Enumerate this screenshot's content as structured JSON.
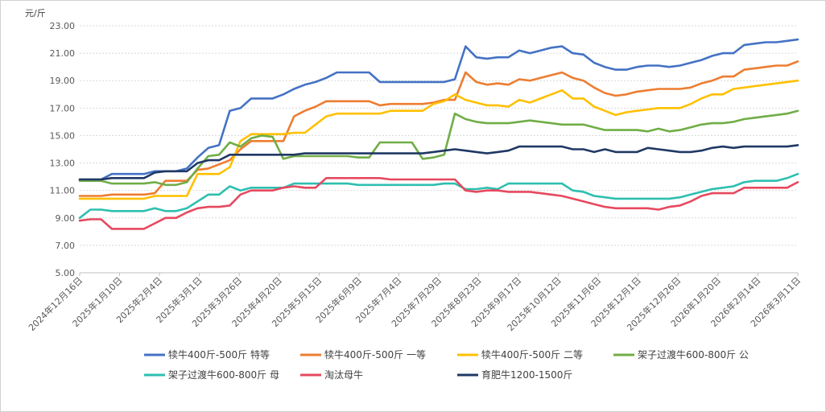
{
  "chart_data": {
    "type": "line",
    "ylabel": "元/斤",
    "ylim": [
      5,
      23
    ],
    "yticks": [
      "5.00",
      "7.00",
      "9.00",
      "11.00",
      "13.00",
      "15.00",
      "17.00",
      "19.00",
      "21.00",
      "23.00"
    ],
    "xticks": [
      "2024年12月16日",
      "2025年1月10日",
      "2025年2月4日",
      "2025年3月1日",
      "2025年3月26日",
      "2025年4月20日",
      "2025年5月15日",
      "2025年6月9日",
      "2025年7月4日",
      "2025年7月29日",
      "2025年8月23日",
      "2025年9月17日",
      "2025年10月12日",
      "2025年11月6日",
      "2025年12月1日",
      "2025年12月26日",
      "2026年1月20日",
      "2026年2月14日",
      "2026年3月11日"
    ],
    "grid": true,
    "legend_position": "bottom",
    "series": [
      {
        "name": "犊牛400斤-500斤 特等",
        "color": "#4472c4",
        "values": [
          11.8,
          11.8,
          11.8,
          12.2,
          12.2,
          12.2,
          12.2,
          12.4,
          12.4,
          12.4,
          12.6,
          13.4,
          14.1,
          14.3,
          16.8,
          17.0,
          17.7,
          17.7,
          17.7,
          18.0,
          18.4,
          18.7,
          18.9,
          19.2,
          19.6,
          19.6,
          19.6,
          19.6,
          18.9,
          18.9,
          18.9,
          18.9,
          18.9,
          18.9,
          18.9,
          19.1,
          21.5,
          20.7,
          20.6,
          20.7,
          20.7,
          21.2,
          21.0,
          21.2,
          21.4,
          21.5,
          21.0,
          20.9,
          20.3,
          20.0,
          19.8,
          19.8,
          20.0,
          20.1,
          20.1,
          20.0,
          20.1,
          20.3,
          20.5,
          20.8,
          21.0,
          21.0,
          21.6,
          21.7,
          21.8,
          21.8,
          21.9,
          22.0
        ]
      },
      {
        "name": "犊牛400斤-500斤 一等",
        "color": "#ed7d31",
        "values": [
          10.6,
          10.6,
          10.6,
          10.7,
          10.7,
          10.7,
          10.7,
          10.8,
          11.7,
          11.7,
          11.7,
          12.5,
          12.6,
          12.9,
          13.2,
          14.0,
          14.6,
          14.6,
          14.6,
          14.6,
          16.4,
          16.8,
          17.1,
          17.5,
          17.5,
          17.5,
          17.5,
          17.5,
          17.2,
          17.3,
          17.3,
          17.3,
          17.3,
          17.4,
          17.6,
          17.6,
          19.6,
          18.9,
          18.7,
          18.8,
          18.7,
          19.1,
          19.0,
          19.2,
          19.4,
          19.6,
          19.2,
          19.0,
          18.5,
          18.1,
          17.9,
          18.0,
          18.2,
          18.3,
          18.4,
          18.4,
          18.4,
          18.5,
          18.8,
          19.0,
          19.3,
          19.3,
          19.8,
          19.9,
          20.0,
          20.1,
          20.1,
          20.4
        ]
      },
      {
        "name": "犊牛400斤-500斤 二等",
        "color": "#ffc000",
        "values": [
          10.4,
          10.4,
          10.4,
          10.4,
          10.4,
          10.4,
          10.4,
          10.6,
          10.6,
          10.6,
          10.6,
          12.2,
          12.2,
          12.2,
          12.7,
          14.6,
          15.1,
          15.1,
          15.1,
          15.1,
          15.2,
          15.2,
          15.8,
          16.4,
          16.6,
          16.6,
          16.6,
          16.6,
          16.6,
          16.8,
          16.8,
          16.8,
          16.8,
          17.3,
          17.5,
          18.0,
          17.6,
          17.4,
          17.2,
          17.2,
          17.1,
          17.6,
          17.4,
          17.7,
          18.0,
          18.3,
          17.7,
          17.7,
          17.1,
          16.8,
          16.5,
          16.7,
          16.8,
          16.9,
          17.0,
          17.0,
          17.0,
          17.3,
          17.7,
          18.0,
          18.0,
          18.4,
          18.5,
          18.6,
          18.7,
          18.8,
          18.9,
          19.0
        ]
      },
      {
        "name": "架子过渡牛600-800斤 公",
        "color": "#70ad47",
        "values": [
          11.7,
          11.7,
          11.7,
          11.5,
          11.5,
          11.5,
          11.5,
          11.6,
          11.4,
          11.4,
          11.6,
          12.6,
          13.5,
          13.6,
          14.5,
          14.2,
          14.8,
          15.0,
          14.9,
          13.3,
          13.5,
          13.5,
          13.5,
          13.5,
          13.5,
          13.5,
          13.4,
          13.4,
          14.5,
          14.5,
          14.5,
          14.5,
          13.3,
          13.4,
          13.6,
          16.6,
          16.2,
          16.0,
          15.9,
          15.9,
          15.9,
          16.0,
          16.1,
          16.0,
          15.9,
          15.8,
          15.8,
          15.8,
          15.6,
          15.4,
          15.4,
          15.4,
          15.4,
          15.3,
          15.5,
          15.3,
          15.4,
          15.6,
          15.8,
          15.9,
          15.9,
          16.0,
          16.2,
          16.3,
          16.4,
          16.5,
          16.6,
          16.8
        ]
      },
      {
        "name": "架子过渡牛600-800斤 母",
        "color": "#2ebfb0",
        "values": [
          9.0,
          9.6,
          9.6,
          9.5,
          9.5,
          9.5,
          9.5,
          9.7,
          9.5,
          9.5,
          9.7,
          10.2,
          10.7,
          10.7,
          11.3,
          11.0,
          11.2,
          11.2,
          11.2,
          11.2,
          11.5,
          11.5,
          11.5,
          11.5,
          11.5,
          11.5,
          11.4,
          11.4,
          11.4,
          11.4,
          11.4,
          11.4,
          11.4,
          11.4,
          11.5,
          11.5,
          11.1,
          11.1,
          11.2,
          11.1,
          11.5,
          11.5,
          11.5,
          11.5,
          11.5,
          11.5,
          11.0,
          10.9,
          10.6,
          10.5,
          10.4,
          10.4,
          10.4,
          10.4,
          10.4,
          10.4,
          10.5,
          10.7,
          10.9,
          11.1,
          11.2,
          11.3,
          11.6,
          11.7,
          11.7,
          11.7,
          11.9,
          12.2
        ]
      },
      {
        "name": "淘汰母牛",
        "color": "#e6495f",
        "values": [
          8.8,
          8.9,
          8.9,
          8.2,
          8.2,
          8.2,
          8.2,
          8.6,
          9.0,
          9.0,
          9.4,
          9.7,
          9.8,
          9.8,
          9.9,
          10.7,
          11.0,
          11.0,
          11.0,
          11.2,
          11.3,
          11.2,
          11.2,
          11.9,
          11.9,
          11.9,
          11.9,
          11.9,
          11.9,
          11.8,
          11.8,
          11.8,
          11.8,
          11.8,
          11.8,
          11.8,
          11.0,
          10.9,
          11.0,
          11.0,
          10.9,
          10.9,
          10.9,
          10.8,
          10.7,
          10.6,
          10.4,
          10.2,
          10.0,
          9.8,
          9.7,
          9.7,
          9.7,
          9.7,
          9.6,
          9.8,
          9.9,
          10.2,
          10.6,
          10.8,
          10.8,
          10.8,
          11.2,
          11.2,
          11.2,
          11.2,
          11.2,
          11.6
        ]
      },
      {
        "name": "育肥牛1200-1500斤",
        "color": "#203864",
        "values": [
          11.8,
          11.8,
          11.8,
          11.9,
          11.9,
          11.9,
          11.9,
          12.3,
          12.4,
          12.4,
          12.4,
          13.0,
          13.2,
          13.2,
          13.6,
          13.6,
          13.6,
          13.6,
          13.6,
          13.6,
          13.6,
          13.7,
          13.7,
          13.7,
          13.7,
          13.7,
          13.7,
          13.7,
          13.7,
          13.7,
          13.7,
          13.7,
          13.7,
          13.8,
          13.9,
          14.0,
          13.9,
          13.8,
          13.7,
          13.8,
          13.9,
          14.2,
          14.2,
          14.2,
          14.2,
          14.2,
          14.0,
          14.0,
          13.8,
          14.0,
          13.8,
          13.8,
          13.8,
          14.1,
          14.0,
          13.9,
          13.8,
          13.8,
          13.9,
          14.1,
          14.2,
          14.1,
          14.2,
          14.2,
          14.2,
          14.2,
          14.2,
          14.3
        ]
      }
    ]
  }
}
